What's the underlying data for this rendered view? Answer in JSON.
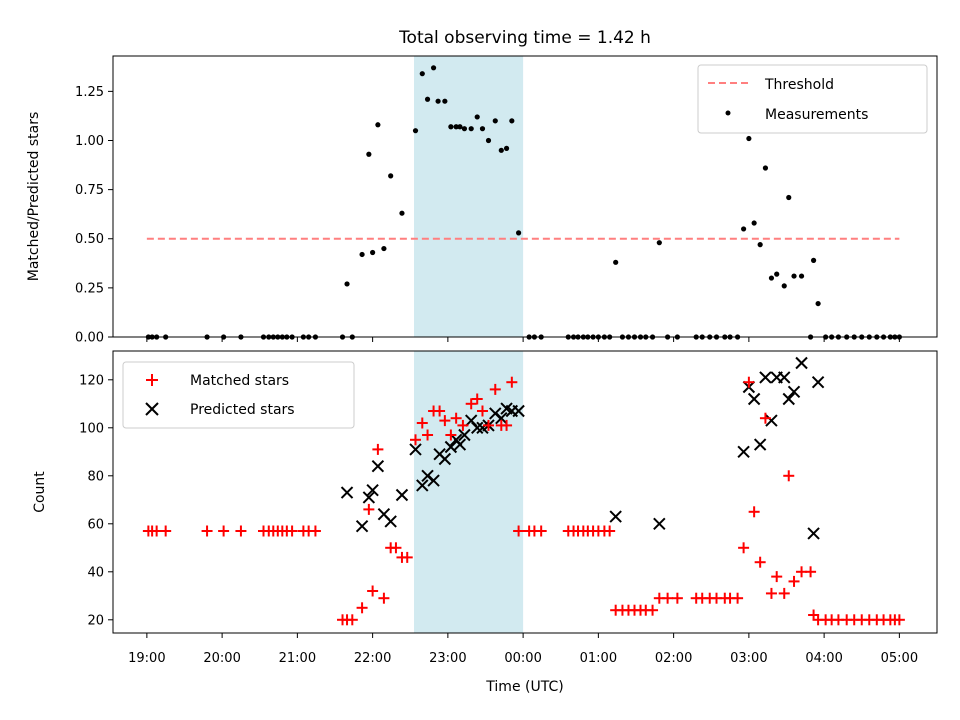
{
  "chart_data": [
    {
      "type": "scatter",
      "title": "Total observing time = 1.42 h",
      "xlabel": "",
      "ylabel": "Matched/Predicted stars",
      "ylim": [
        0,
        1.43
      ],
      "xlim": [
        -0.45,
        10.5
      ],
      "grid": false,
      "legend_placement": "top-right",
      "shaded_interval": {
        "x_start": 3.55,
        "x_end": 5.0,
        "color": "#d2eaf0"
      },
      "yticks": [
        "0.00",
        "0.25",
        "0.50",
        "0.75",
        "1.00",
        "1.25"
      ],
      "series": [
        {
          "name": "Threshold",
          "kind": "dashed-line",
          "color": "#ff7f7f",
          "x": [
            0.0,
            10.0
          ],
          "y": [
            0.5,
            0.5
          ]
        },
        {
          "name": "Measurements",
          "kind": "points",
          "color": "#000000",
          "points": [
            [
              0.02,
              0
            ],
            [
              0.07,
              0
            ],
            [
              0.13,
              0
            ],
            [
              0.25,
              0
            ],
            [
              0.8,
              0
            ],
            [
              1.02,
              0
            ],
            [
              1.25,
              0
            ],
            [
              1.55,
              0
            ],
            [
              1.62,
              0
            ],
            [
              1.68,
              0
            ],
            [
              1.74,
              0
            ],
            [
              1.8,
              0
            ],
            [
              1.86,
              0
            ],
            [
              1.93,
              0
            ],
            [
              2.08,
              0
            ],
            [
              2.15,
              0
            ],
            [
              2.24,
              0
            ],
            [
              2.6,
              0
            ],
            [
              2.66,
              0.27
            ],
            [
              2.73,
              0
            ],
            [
              2.86,
              0.42
            ],
            [
              2.95,
              0.93
            ],
            [
              3.0,
              0.43
            ],
            [
              3.07,
              1.08
            ],
            [
              3.15,
              0.45
            ],
            [
              3.24,
              0.82
            ],
            [
              3.39,
              0.63
            ],
            [
              3.57,
              1.05
            ],
            [
              3.66,
              1.34
            ],
            [
              3.73,
              1.21
            ],
            [
              3.81,
              1.37
            ],
            [
              3.87,
              1.2
            ],
            [
              3.96,
              1.2
            ],
            [
              4.04,
              1.07
            ],
            [
              4.11,
              1.07
            ],
            [
              4.16,
              1.07
            ],
            [
              4.22,
              1.06
            ],
            [
              4.31,
              1.06
            ],
            [
              4.39,
              1.12
            ],
            [
              4.46,
              1.06
            ],
            [
              4.54,
              1.0
            ],
            [
              4.63,
              1.1
            ],
            [
              4.71,
              0.95
            ],
            [
              4.78,
              0.96
            ],
            [
              4.85,
              1.1
            ],
            [
              4.94,
              0.53
            ],
            [
              5.08,
              0
            ],
            [
              5.15,
              0
            ],
            [
              5.24,
              0
            ],
            [
              5.6,
              0
            ],
            [
              5.67,
              0
            ],
            [
              5.73,
              0
            ],
            [
              5.8,
              0
            ],
            [
              5.86,
              0
            ],
            [
              5.93,
              0
            ],
            [
              6.0,
              0
            ],
            [
              6.08,
              0
            ],
            [
              6.15,
              0
            ],
            [
              6.23,
              0.38
            ],
            [
              6.32,
              0
            ],
            [
              6.4,
              0
            ],
            [
              6.48,
              0
            ],
            [
              6.56,
              0
            ],
            [
              6.63,
              0
            ],
            [
              6.72,
              0
            ],
            [
              6.81,
              0.48
            ],
            [
              6.92,
              0
            ],
            [
              7.05,
              0
            ],
            [
              7.3,
              0
            ],
            [
              7.38,
              0
            ],
            [
              7.48,
              0
            ],
            [
              7.57,
              0
            ],
            [
              7.68,
              0
            ],
            [
              7.75,
              0
            ],
            [
              7.85,
              0
            ],
            [
              7.93,
              0.55
            ],
            [
              8.0,
              1.01
            ],
            [
              8.07,
              0.58
            ],
            [
              8.15,
              0.47
            ],
            [
              8.22,
              0.86
            ],
            [
              8.3,
              0.3
            ],
            [
              8.37,
              0.32
            ],
            [
              8.47,
              0.26
            ],
            [
              8.53,
              0.71
            ],
            [
              8.6,
              0.31
            ],
            [
              8.7,
              0.31
            ],
            [
              8.82,
              0
            ],
            [
              8.86,
              0.39
            ],
            [
              8.92,
              0.17
            ],
            [
              9.02,
              0
            ],
            [
              9.1,
              0
            ],
            [
              9.19,
              0
            ],
            [
              9.3,
              0
            ],
            [
              9.4,
              0
            ],
            [
              9.5,
              0
            ],
            [
              9.6,
              0
            ],
            [
              9.7,
              0
            ],
            [
              9.79,
              0
            ],
            [
              9.88,
              0
            ],
            [
              9.94,
              0
            ],
            [
              10.0,
              0
            ]
          ]
        }
      ]
    },
    {
      "type": "scatter",
      "title": "",
      "xlabel": "Time (UTC)",
      "ylabel": "Count",
      "ylim": [
        14.5,
        132
      ],
      "xlim": [
        -0.45,
        10.5
      ],
      "grid": false,
      "legend_placement": "top-left",
      "shaded_interval": {
        "x_start": 3.55,
        "x_end": 5.0,
        "color": "#d2eaf0"
      },
      "yticks": [
        "20",
        "40",
        "60",
        "80",
        "100",
        "120"
      ],
      "xticks": [
        {
          "x": 0,
          "label": "19:00"
        },
        {
          "x": 1,
          "label": "20:00"
        },
        {
          "x": 2,
          "label": "21:00"
        },
        {
          "x": 3,
          "label": "22:00"
        },
        {
          "x": 4,
          "label": "23:00"
        },
        {
          "x": 5,
          "label": "00:00"
        },
        {
          "x": 6,
          "label": "01:00"
        },
        {
          "x": 7,
          "label": "02:00"
        },
        {
          "x": 8,
          "label": "03:00"
        },
        {
          "x": 9,
          "label": "04:00"
        },
        {
          "x": 10,
          "label": "05:00"
        }
      ],
      "series": [
        {
          "name": "Matched stars",
          "kind": "plus",
          "color": "#ff0000",
          "points": [
            [
              0.02,
              57
            ],
            [
              0.07,
              57
            ],
            [
              0.13,
              57
            ],
            [
              0.25,
              57
            ],
            [
              0.8,
              57
            ],
            [
              1.02,
              57
            ],
            [
              1.25,
              57
            ],
            [
              1.55,
              57
            ],
            [
              1.62,
              57
            ],
            [
              1.68,
              57
            ],
            [
              1.74,
              57
            ],
            [
              1.8,
              57
            ],
            [
              1.86,
              57
            ],
            [
              1.93,
              57
            ],
            [
              2.08,
              57
            ],
            [
              2.15,
              57
            ],
            [
              2.24,
              57
            ],
            [
              2.6,
              20
            ],
            [
              2.66,
              20
            ],
            [
              2.73,
              20
            ],
            [
              2.86,
              25
            ],
            [
              2.95,
              66
            ],
            [
              3.0,
              32
            ],
            [
              3.07,
              91
            ],
            [
              3.15,
              29
            ],
            [
              3.24,
              50
            ],
            [
              3.31,
              50
            ],
            [
              3.39,
              46
            ],
            [
              3.46,
              46
            ],
            [
              3.57,
              95
            ],
            [
              3.66,
              102
            ],
            [
              3.73,
              97
            ],
            [
              3.81,
              107
            ],
            [
              3.89,
              107
            ],
            [
              3.96,
              103
            ],
            [
              4.04,
              97
            ],
            [
              4.11,
              104
            ],
            [
              4.2,
              101
            ],
            [
              4.31,
              110
            ],
            [
              4.39,
              112
            ],
            [
              4.46,
              107
            ],
            [
              4.54,
              101
            ],
            [
              4.63,
              116
            ],
            [
              4.71,
              101
            ],
            [
              4.78,
              101
            ],
            [
              4.85,
              119
            ],
            [
              4.94,
              57
            ],
            [
              5.08,
              57
            ],
            [
              5.15,
              57
            ],
            [
              5.24,
              57
            ],
            [
              5.6,
              57
            ],
            [
              5.67,
              57
            ],
            [
              5.73,
              57
            ],
            [
              5.8,
              57
            ],
            [
              5.86,
              57
            ],
            [
              5.93,
              57
            ],
            [
              6.0,
              57
            ],
            [
              6.08,
              57
            ],
            [
              6.15,
              57
            ],
            [
              6.23,
              24
            ],
            [
              6.32,
              24
            ],
            [
              6.4,
              24
            ],
            [
              6.48,
              24
            ],
            [
              6.56,
              24
            ],
            [
              6.63,
              24
            ],
            [
              6.72,
              24
            ],
            [
              6.81,
              29
            ],
            [
              6.92,
              29
            ],
            [
              7.05,
              29
            ],
            [
              7.3,
              29
            ],
            [
              7.38,
              29
            ],
            [
              7.48,
              29
            ],
            [
              7.57,
              29
            ],
            [
              7.68,
              29
            ],
            [
              7.75,
              29
            ],
            [
              7.85,
              29
            ],
            [
              7.93,
              50
            ],
            [
              8.0,
              119
            ],
            [
              8.07,
              65
            ],
            [
              8.15,
              44
            ],
            [
              8.22,
              104
            ],
            [
              8.3,
              31
            ],
            [
              8.37,
              38
            ],
            [
              8.47,
              31
            ],
            [
              8.53,
              80
            ],
            [
              8.6,
              36
            ],
            [
              8.7,
              40
            ],
            [
              8.82,
              40
            ],
            [
              8.86,
              22
            ],
            [
              8.92,
              20
            ],
            [
              9.02,
              20
            ],
            [
              9.1,
              20
            ],
            [
              9.19,
              20
            ],
            [
              9.3,
              20
            ],
            [
              9.4,
              20
            ],
            [
              9.5,
              20
            ],
            [
              9.6,
              20
            ],
            [
              9.7,
              20
            ],
            [
              9.79,
              20
            ],
            [
              9.88,
              20
            ],
            [
              9.94,
              20
            ],
            [
              10.0,
              20
            ]
          ]
        },
        {
          "name": "Predicted stars",
          "kind": "cross",
          "color": "#000000",
          "points": [
            [
              2.66,
              73
            ],
            [
              2.86,
              59
            ],
            [
              2.95,
              71
            ],
            [
              3.0,
              74
            ],
            [
              3.07,
              84
            ],
            [
              3.15,
              64
            ],
            [
              3.24,
              61
            ],
            [
              3.39,
              72
            ],
            [
              3.57,
              91
            ],
            [
              3.66,
              76
            ],
            [
              3.73,
              80
            ],
            [
              3.81,
              78
            ],
            [
              3.89,
              89
            ],
            [
              3.96,
              87
            ],
            [
              4.04,
              92
            ],
            [
              4.11,
              95
            ],
            [
              4.16,
              93
            ],
            [
              4.22,
              97
            ],
            [
              4.31,
              103
            ],
            [
              4.39,
              100
            ],
            [
              4.46,
              100
            ],
            [
              4.54,
              101
            ],
            [
              4.63,
              106
            ],
            [
              4.71,
              104
            ],
            [
              4.78,
              108
            ],
            [
              4.85,
              107
            ],
            [
              4.94,
              107
            ],
            [
              6.23,
              63
            ],
            [
              6.81,
              60
            ],
            [
              7.93,
              90
            ],
            [
              8.0,
              117
            ],
            [
              8.07,
              112
            ],
            [
              8.15,
              93
            ],
            [
              8.22,
              121
            ],
            [
              8.3,
              103
            ],
            [
              8.37,
              121
            ],
            [
              8.47,
              121
            ],
            [
              8.53,
              112
            ],
            [
              8.6,
              115
            ],
            [
              8.7,
              127
            ],
            [
              8.86,
              56
            ],
            [
              8.92,
              119
            ]
          ]
        }
      ]
    }
  ]
}
